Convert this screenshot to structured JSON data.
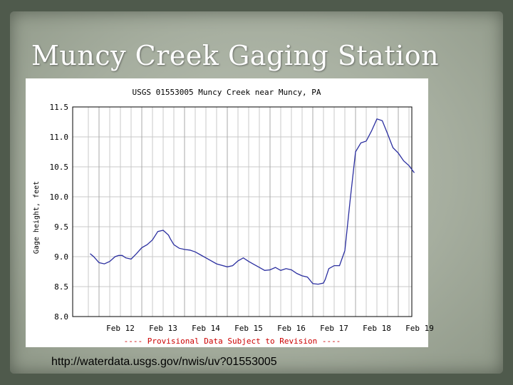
{
  "slide": {
    "title": "Muncy Creek Gaging Station",
    "source_url": "http://waterdata.usgs.gov/nwis/uv?01553005"
  },
  "colors": {
    "line": "#2b2fa0",
    "footer_text": "#cc0000",
    "grid": "#c9c9c9"
  },
  "chart_data": {
    "type": "line",
    "title": "USGS 01553005 Muncy Creek near Muncy, PA",
    "ylabel": "Gage height, feet",
    "xlabel": "",
    "footer": "---- Provisional Data Subject to Revision ----",
    "ylim": [
      8.0,
      11.5
    ],
    "yticks": [
      "11.5",
      "11.0",
      "10.5",
      "10.0",
      "9.5",
      "9.0",
      "8.5",
      "8.0"
    ],
    "xticks": [
      "Feb 12",
      "Feb 13",
      "Feb 14",
      "Feb 15",
      "Feb 16",
      "Feb 17",
      "Feb 18",
      "Feb 19"
    ],
    "grid": true,
    "series": [
      {
        "x": [
          "Feb 11 19:00",
          "Feb 11 21:00",
          "Feb 12 00:00",
          "Feb 12 03:00",
          "Feb 12 06:00",
          "Feb 12 09:00",
          "Feb 12 11:00",
          "Feb 12 13:00",
          "Feb 12 15:00",
          "Feb 12 18:00",
          "Feb 12 21:00",
          "Feb 13 00:00",
          "Feb 13 03:00",
          "Feb 13 06:00",
          "Feb 13 09:00",
          "Feb 13 12:00",
          "Feb 13 15:00",
          "Feb 13 16:00",
          "Feb 13 18:00",
          "Feb 13 21:00",
          "Feb 14 00:00",
          "Feb 14 03:00",
          "Feb 14 06:00",
          "Feb 14 09:00",
          "Feb 14 12:00",
          "Feb 14 18:00",
          "Feb 15 00:00",
          "Feb 15 03:00",
          "Feb 15 06:00",
          "Feb 15 09:00",
          "Feb 15 12:00",
          "Feb 15 15:00",
          "Feb 15 18:00",
          "Feb 15 21:00",
          "Feb 16 00:00",
          "Feb 16 03:00",
          "Feb 16 06:00",
          "Feb 16 09:00",
          "Feb 16 12:00",
          "Feb 16 15:00",
          "Feb 16 18:00",
          "Feb 16 21:00",
          "Feb 17 00:00",
          "Feb 17 03:00",
          "Feb 17 06:00",
          "Feb 17 07:00",
          "Feb 17 09:00",
          "Feb 17 12:00",
          "Feb 17 15:00",
          "Feb 17 18:00",
          "Feb 17 21:00",
          "Feb 18 00:00",
          "Feb 18 03:00",
          "Feb 18 06:00",
          "Feb 18 09:00",
          "Feb 18 12:00",
          "Feb 18 15:00",
          "Feb 18 18:00",
          "Feb 18 21:00",
          "Feb 19 00:00",
          "Feb 19 03:00",
          "Feb 19 06:00",
          "Feb 19 09:00"
        ],
        "values": [
          9.05,
          9.0,
          8.9,
          8.88,
          8.92,
          9.0,
          9.02,
          9.02,
          8.98,
          8.96,
          9.05,
          9.15,
          9.2,
          9.28,
          9.42,
          9.44,
          9.36,
          9.3,
          9.2,
          9.14,
          9.12,
          9.11,
          9.08,
          9.03,
          8.98,
          8.88,
          8.83,
          8.85,
          8.93,
          8.98,
          8.92,
          8.87,
          8.82,
          8.77,
          8.78,
          8.82,
          8.77,
          8.8,
          8.78,
          8.72,
          8.68,
          8.66,
          8.55,
          8.54,
          8.56,
          8.62,
          8.8,
          8.85,
          8.85,
          9.1,
          9.95,
          10.75,
          10.9,
          10.93,
          11.1,
          11.3,
          11.27,
          11.05,
          10.82,
          10.73,
          10.6,
          10.52,
          10.4
        ]
      }
    ]
  }
}
